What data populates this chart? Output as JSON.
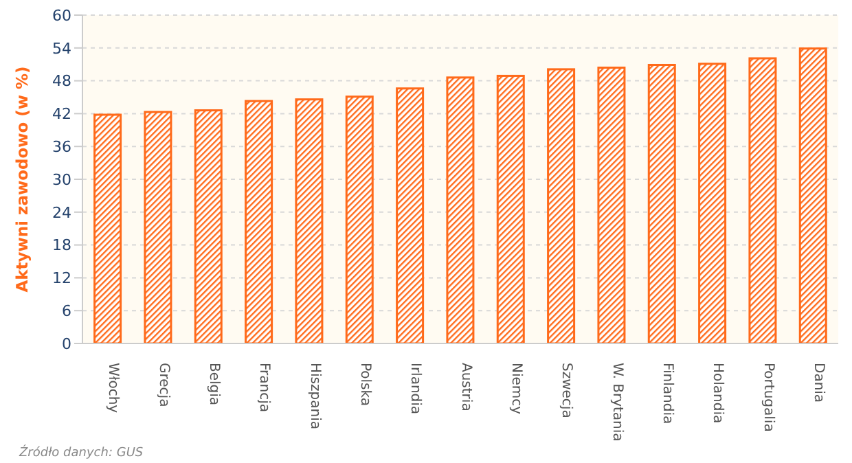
{
  "chart_data": {
    "type": "bar",
    "ylabel": "Aktywni zawodowo (w %)",
    "categories": [
      "Włochy",
      "Grecja",
      "Belgia",
      "Francja",
      "Hiszpania",
      "Polska",
      "Irlandia",
      "Austria",
      "Niemcy",
      "Szwecja",
      "W. Brytania",
      "Finlandia",
      "Holandia",
      "Portugalia",
      "Dania"
    ],
    "values": [
      41.8,
      42.3,
      42.6,
      44.3,
      44.6,
      45.1,
      46.6,
      48.6,
      48.9,
      50.1,
      50.4,
      50.9,
      51.1,
      52.1,
      53.9
    ],
    "color": "#ff6a1a",
    "ylim": [
      0,
      60
    ],
    "yticks": [
      0,
      6,
      12,
      18,
      24,
      30,
      36,
      42,
      48,
      54,
      60
    ],
    "grid": "y",
    "annotations": [
      "Źródło danych: GUS"
    ]
  }
}
